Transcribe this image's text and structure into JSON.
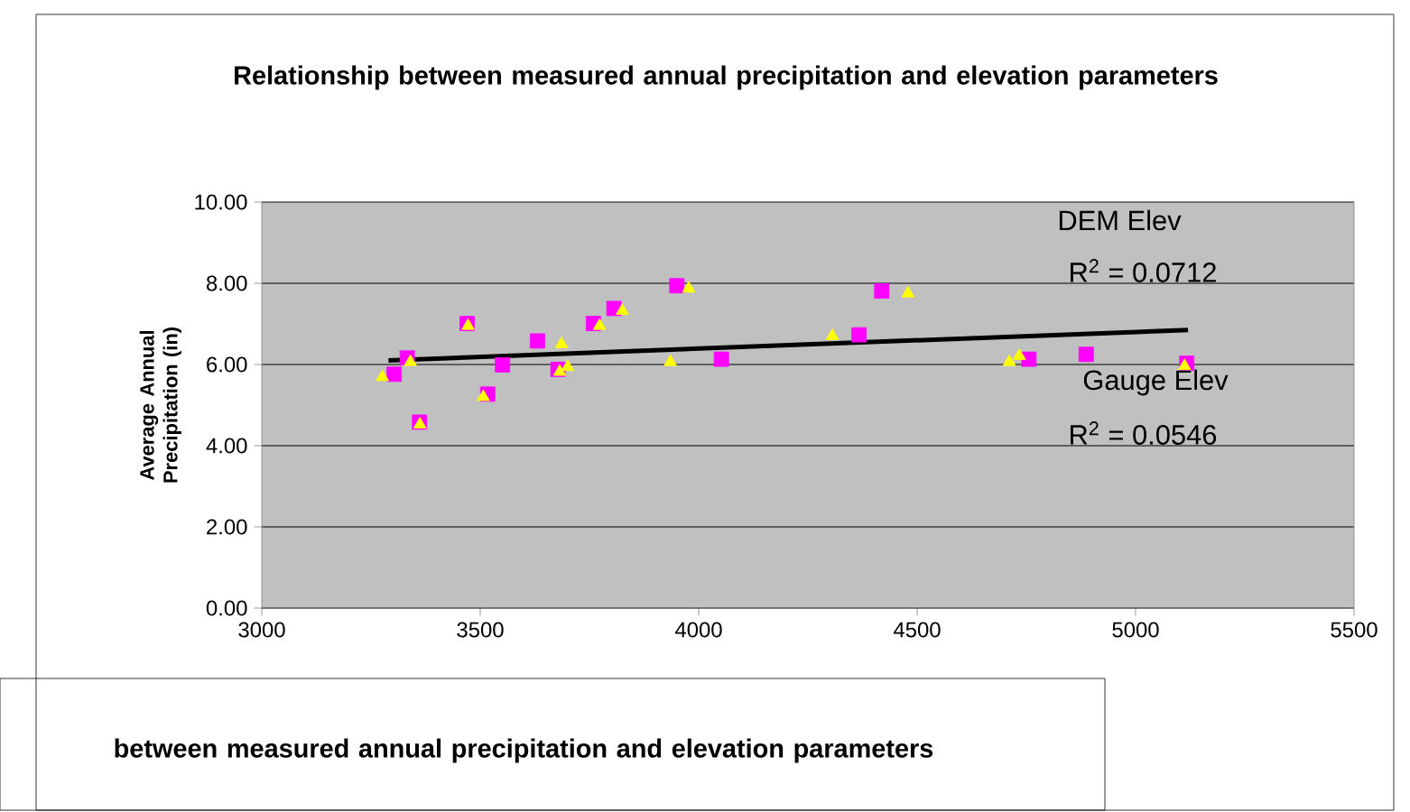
{
  "chart_data": {
    "type": "scatter",
    "title": "Relationship between measured annual precipitation and elevation parameters",
    "ylabel": "Average Annual Precipitation (in)",
    "xlim": [
      3000,
      5500
    ],
    "xticks": [
      3000,
      3500,
      4000,
      4500,
      5000,
      5500
    ],
    "ylim": [
      0,
      10
    ],
    "yticks": [
      {
        "value": 0,
        "label": "0.00"
      },
      {
        "value": 2,
        "label": "2.00"
      },
      {
        "value": 4,
        "label": "4.00"
      },
      {
        "value": 6,
        "label": "6.00"
      },
      {
        "value": 8,
        "label": "8.00"
      },
      {
        "value": 10,
        "label": "10.00"
      }
    ],
    "grid": "y",
    "series": [
      {
        "color": "#ff00ff",
        "marker": "square",
        "x": [
          3303,
          3333,
          3470,
          3361,
          3517,
          3551,
          3631,
          3678,
          3759,
          3806,
          3950,
          4052,
          4419,
          4367,
          4756,
          4887,
          5117
        ],
        "values": [
          5.76,
          6.16,
          7.01,
          4.58,
          5.27,
          5.99,
          6.58,
          5.88,
          7.01,
          7.38,
          7.94,
          6.13,
          7.81,
          6.73,
          6.13,
          6.25,
          6.03
        ]
      },
      {
        "color": "#ffff00",
        "marker": "triangle",
        "x": [
          3276,
          3340,
          3472,
          3362,
          3507,
          3686,
          3700,
          3682,
          3773,
          3825,
          3977,
          3935,
          4479,
          4306,
          4711,
          4734,
          5112
        ],
        "values": [
          5.69,
          6.06,
          6.95,
          4.52,
          5.2,
          6.5,
          5.94,
          5.82,
          6.95,
          7.32,
          7.87,
          6.06,
          7.75,
          6.7,
          6.06,
          6.21,
          5.96
        ]
      },
      {
        "type": "line",
        "color": "#000000",
        "marker": "none",
        "x": [
          3290,
          5120
        ],
        "values": [
          6.1,
          6.85
        ]
      }
    ],
    "annotations": [
      "DEM Elev",
      "R$^{2}$ = 0.0712",
      "Gauge Elev",
      "R$^{2}$ = 0.0546",
      "between measured annual precipitation and elevation parameters"
    ]
  }
}
